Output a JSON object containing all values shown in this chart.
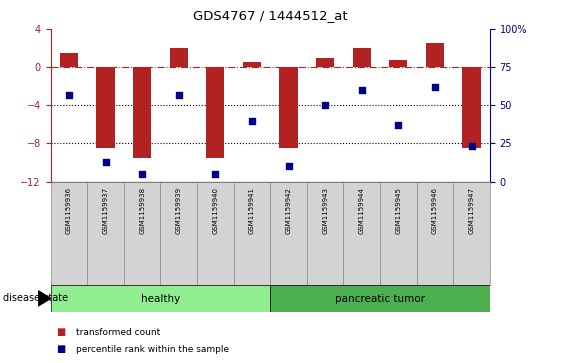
{
  "title": "GDS4767 / 1444512_at",
  "samples": [
    "GSM1159936",
    "GSM1159937",
    "GSM1159938",
    "GSM1159939",
    "GSM1159940",
    "GSM1159941",
    "GSM1159942",
    "GSM1159943",
    "GSM1159944",
    "GSM1159945",
    "GSM1159946",
    "GSM1159947"
  ],
  "bar_values": [
    1.5,
    -8.5,
    -9.5,
    2.0,
    -9.5,
    0.5,
    -8.5,
    1.0,
    2.0,
    0.8,
    2.5,
    -8.5
  ],
  "percentile_values": [
    57,
    13,
    5,
    57,
    5,
    40,
    10,
    50,
    60,
    37,
    62,
    23
  ],
  "ylim_left": [
    -12,
    4
  ],
  "ylim_right": [
    0,
    100
  ],
  "bar_color": "#b22222",
  "dot_color": "#00008b",
  "dotted_lines": [
    -4,
    -8
  ],
  "healthy_count": 6,
  "healthy_label": "healthy",
  "tumor_label": "pancreatic tumor",
  "healthy_color": "#90ee90",
  "tumor_color": "#4caf50",
  "bar_width": 0.5,
  "disease_state_label": "disease state",
  "legend_bar_label": "transformed count",
  "legend_dot_label": "percentile rank within the sample"
}
